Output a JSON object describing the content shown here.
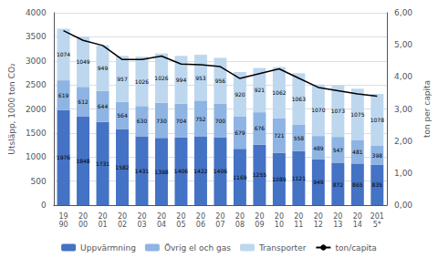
{
  "chart_data": {
    "type": "bar",
    "categories": [
      "19\n90",
      "20\n00",
      "20\n01",
      "20\n02",
      "20\n03",
      "20\n04",
      "20\n05",
      "20\n06",
      "20\n07",
      "20\n08",
      "20\n09",
      "20\n10",
      "20\n11",
      "20\n12",
      "20\n13",
      "20\n14",
      "201\n5*"
    ],
    "stacked": true,
    "grid": true,
    "legend": "bottom",
    "ylabel": "Utsläpp, 1000 ton CO₂",
    "y2label": "ton per capita",
    "ylim": [
      0,
      4000
    ],
    "yticks": [
      0,
      500,
      1000,
      1500,
      2000,
      2500,
      3000,
      3500,
      4000
    ],
    "y2lim": [
      0,
      6.0
    ],
    "y2ticks": [
      {
        "value": 0,
        "label": "0,00"
      },
      {
        "value": 1,
        "label": "1,00"
      },
      {
        "value": 2,
        "label": "2,00"
      },
      {
        "value": 3,
        "label": "3,00"
      },
      {
        "value": 4,
        "label": "4,00"
      },
      {
        "value": 5,
        "label": "5,00"
      },
      {
        "value": 6,
        "label": "6,00"
      }
    ],
    "series": [
      {
        "name": "Uppvärmning",
        "type": "bar",
        "color": "#4472C4",
        "data_labels": true,
        "values": [
          1976,
          1848,
          1731,
          1582,
          1431,
          1398,
          1406,
          1422,
          1406,
          1169,
          1255,
          1089,
          1121,
          949,
          872,
          865,
          835
        ]
      },
      {
        "name": "Övrig el och gas",
        "type": "bar",
        "color": "#8EB4E3",
        "data_labels": true,
        "values": [
          619,
          612,
          644,
          564,
          630,
          730,
          704,
          752,
          700,
          679,
          676,
          721,
          558,
          489,
          547,
          481,
          398
        ]
      },
      {
        "name": "Transporter",
        "type": "bar",
        "color": "#BDD7EE",
        "data_labels": true,
        "values": [
          1074,
          1049,
          949,
          957,
          1026,
          1026,
          994,
          953,
          956,
          920,
          921,
          1062,
          1063,
          1070,
          1073,
          1075,
          1078
        ]
      },
      {
        "name": "ton/capita",
        "type": "line",
        "axis": "y2",
        "color": "#000000",
        "values": [
          5.44,
          5.14,
          4.98,
          4.54,
          4.54,
          4.65,
          4.4,
          4.38,
          4.32,
          3.95,
          4.1,
          4.25,
          3.96,
          3.67,
          3.57,
          3.47,
          3.4
        ]
      }
    ]
  }
}
